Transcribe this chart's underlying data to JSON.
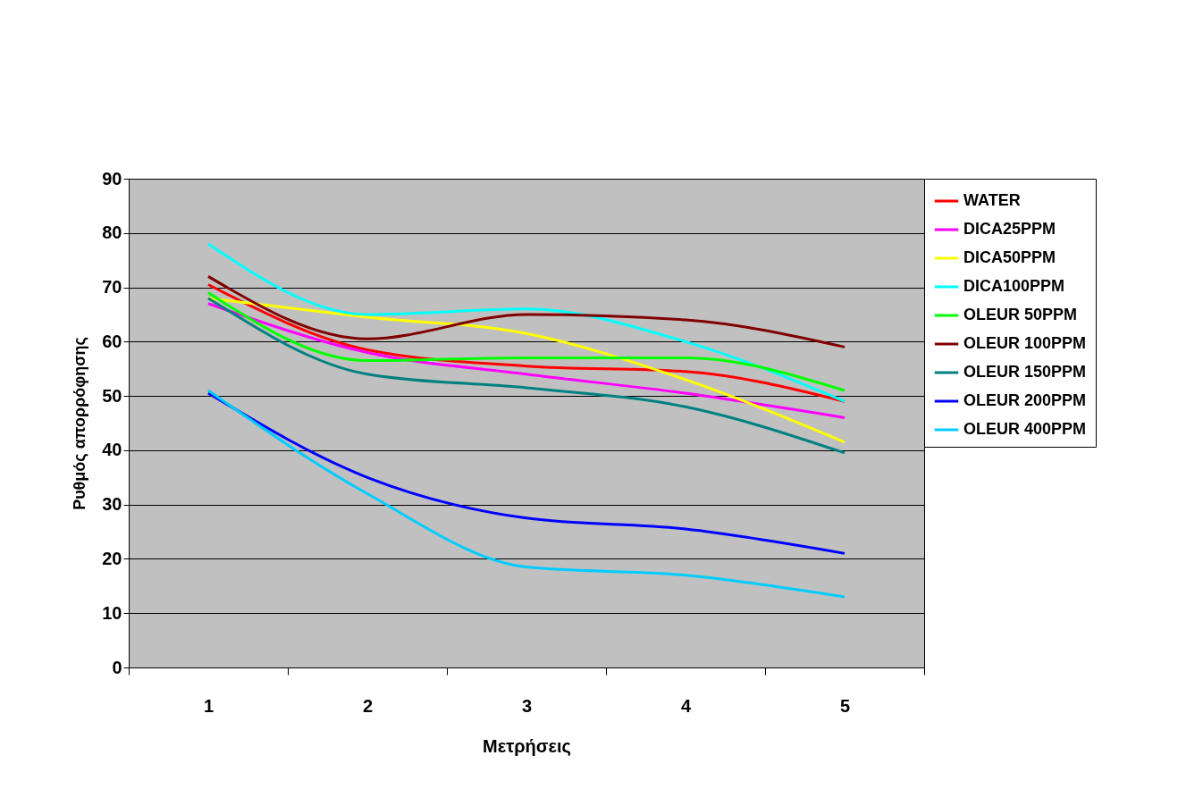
{
  "chart_data": {
    "type": "line",
    "xlabel": "Μετρήσεις",
    "ylabel": "Ρυθμός απορρόφησης",
    "categories": [
      "1",
      "2",
      "3",
      "4",
      "5"
    ],
    "ylim": [
      0,
      90
    ],
    "yticks": [
      0,
      10,
      20,
      30,
      40,
      50,
      60,
      70,
      80,
      90
    ],
    "grid": "y",
    "legend": "right",
    "marker": "none",
    "line_style": "solid",
    "series": [
      {
        "name": "WATER",
        "color": "#ff0000",
        "values": [
          70.5,
          58.5,
          55.5,
          54.5,
          49
        ]
      },
      {
        "name": "DICA25PPM",
        "color": "#ff00ff",
        "values": [
          67,
          58,
          54,
          50.5,
          46
        ]
      },
      {
        "name": "DICA50PPM",
        "color": "#ffff00",
        "values": [
          68,
          64.5,
          61.5,
          53,
          41.5
        ]
      },
      {
        "name": "DICA100PPM",
        "color": "#00ffff",
        "values": [
          78,
          65,
          66,
          60,
          49
        ]
      },
      {
        "name": "OLEUR 50PPM",
        "color": "#00ff00",
        "values": [
          69,
          56.5,
          57,
          57,
          51
        ]
      },
      {
        "name": "OLEUR 100PPM",
        "color": "#800000",
        "values": [
          72,
          60.5,
          65,
          64,
          59
        ]
      },
      {
        "name": "OLEUR 150PPM",
        "color": "#008080",
        "values": [
          68,
          54,
          51.5,
          48,
          39.5
        ]
      },
      {
        "name": "OLEUR 200PPM",
        "color": "#0000ff",
        "values": [
          50.5,
          35,
          27.5,
          25.5,
          21
        ]
      },
      {
        "name": "OLEUR 400PPM",
        "color": "#00ccff",
        "values": [
          51,
          32,
          18.5,
          17,
          13
        ]
      }
    ]
  }
}
